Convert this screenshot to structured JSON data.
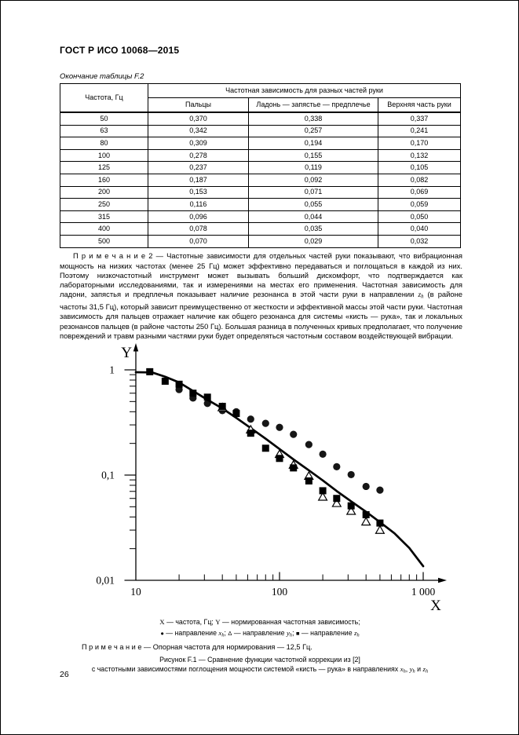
{
  "page": {
    "standard_code": "ГОСТ Р ИСО 10068—2015",
    "table_continuation": "Окончание таблицы F.2",
    "page_number": "26"
  },
  "table": {
    "col1_header": "Частота, Гц",
    "group_header": "Частотная зависимость для разных частей руки",
    "sub_headers": [
      "Пальцы",
      "Ладонь — запястье — предплечье",
      "Верхняя часть руки"
    ],
    "rows": [
      [
        "50",
        "0,370",
        "0,338",
        "0,337"
      ],
      [
        "63",
        "0,342",
        "0,257",
        "0,241"
      ],
      [
        "80",
        "0,309",
        "0,194",
        "0,170"
      ],
      [
        "100",
        "0,278",
        "0,155",
        "0,132"
      ],
      [
        "125",
        "0,237",
        "0,119",
        "0,105"
      ],
      [
        "160",
        "0,187",
        "0,092",
        "0,082"
      ],
      [
        "200",
        "0,153",
        "0,071",
        "0,069"
      ],
      [
        "250",
        "0,116",
        "0,055",
        "0,059"
      ],
      [
        "315",
        "0,096",
        "0,044",
        "0,050"
      ],
      [
        "400",
        "0,078",
        "0,035",
        "0,040"
      ],
      [
        "500",
        "0,070",
        "0,029",
        "0,032"
      ]
    ]
  },
  "note2": {
    "segments": [
      {
        "t": "П р и м е ч а н и е  2 — Частотные зависимости для отдельных частей руки показывают, что вибрационная мощность на низких частотах (менее 25 Гц) может эффективно передаваться и поглощаться в каждой из них. Поэтому низкочастотный инструмент может вызывать больший дискомфорт, что подтверждается как лабораторными исследованиями, так и измерениями на местах его применения. Частотная зависимость для ладони, запястья и предплечья показывает наличие резонанса в этой части руки в направлении "
      },
      {
        "t": "z",
        "s": "i"
      },
      {
        "t": "h",
        "s": "sub"
      },
      {
        "t": " (в районе частоты 31,5 Гц), который зависит преимущественно от жесткости и эффективной массы этой части руки. Частотная зависимость для пальцев отражает наличие как общего резонанса для системы «кисть — рука», так и локальных резонансов пальцев (в районе частоты 250 Гц). Большая разница в полученных кривых предполагает, что получение повреждений и травм разными частями руки будет определяться частотным составом воздействующей вибрации."
      }
    ]
  },
  "chart_data": {
    "type": "line",
    "title": "Рисунок F.1 — Сравнение функции частотной коррекции из [2] с частотными зависимостями поглощения мощности системой «кисть — рука» в направлениях xh, yh и zh",
    "normalization_reference": "Опорная частота для нормирования — 12,5 Гц",
    "x_axis": {
      "label": "X",
      "meaning": "частота, Гц",
      "scale": "log",
      "min": 10,
      "max": 1000,
      "ticks": [
        10,
        100,
        1000
      ],
      "tick_labels": [
        "10",
        "100",
        "1 000"
      ],
      "minor_ticks": [
        20,
        30,
        40,
        50,
        60,
        70,
        80,
        90,
        200,
        300,
        400,
        500,
        600,
        700,
        800,
        900
      ]
    },
    "y_axis": {
      "label": "Y",
      "meaning": "нормированная частотная зависимость",
      "scale": "log",
      "min": 0.01,
      "max": 1,
      "ticks": [
        1,
        0.1,
        0.01
      ],
      "tick_labels": [
        "1",
        "0,1",
        "0,01"
      ],
      "minor_ticks": [
        0.9,
        0.8,
        0.7,
        0.6,
        0.5,
        0.4,
        0.3,
        0.2,
        0.09,
        0.08,
        0.07,
        0.06,
        0.05,
        0.04,
        0.03,
        0.02
      ]
    },
    "series": [
      {
        "name": "функция частотной коррекции из [2]",
        "symbol": "line",
        "points": [
          [
            10,
            0.95
          ],
          [
            13,
            0.945
          ],
          [
            16,
            0.86
          ],
          [
            20,
            0.76
          ],
          [
            25,
            0.63
          ],
          [
            31.5,
            0.52
          ],
          [
            40,
            0.43
          ],
          [
            50,
            0.35
          ],
          [
            63,
            0.28
          ],
          [
            80,
            0.222
          ],
          [
            100,
            0.177
          ],
          [
            125,
            0.141
          ],
          [
            160,
            0.111
          ],
          [
            200,
            0.089
          ],
          [
            250,
            0.0705
          ],
          [
            315,
            0.0563
          ],
          [
            400,
            0.0448
          ],
          [
            500,
            0.0357
          ],
          [
            630,
            0.028
          ],
          [
            800,
            0.0203
          ],
          [
            1000,
            0.0136
          ]
        ]
      },
      {
        "name": "направление xh",
        "symbol": "filled-circle",
        "points": [
          [
            20,
            0.65
          ],
          [
            25,
            0.54
          ],
          [
            31.5,
            0.48
          ],
          [
            40,
            0.41
          ],
          [
            50,
            0.4
          ],
          [
            63,
            0.34
          ],
          [
            80,
            0.31
          ],
          [
            100,
            0.284
          ],
          [
            125,
            0.244
          ],
          [
            160,
            0.195
          ],
          [
            200,
            0.158
          ],
          [
            250,
            0.12
          ],
          [
            315,
            0.101
          ],
          [
            400,
            0.078
          ],
          [
            500,
            0.072
          ]
        ]
      },
      {
        "name": "направление yh",
        "symbol": "open-triangle",
        "points": [
          [
            40,
            0.44
          ],
          [
            63,
            0.27
          ],
          [
            100,
            0.158
          ],
          [
            125,
            0.125
          ],
          [
            160,
            0.098
          ],
          [
            200,
            0.062
          ],
          [
            250,
            0.054
          ],
          [
            315,
            0.0455
          ],
          [
            400,
            0.036
          ],
          [
            500,
            0.03
          ]
        ]
      },
      {
        "name": "направление zh",
        "symbol": "filled-square",
        "points": [
          [
            12.5,
            0.96
          ],
          [
            16,
            0.78
          ],
          [
            20,
            0.73
          ],
          [
            25,
            0.6
          ],
          [
            31.5,
            0.55
          ],
          [
            40,
            0.45
          ],
          [
            50,
            0.385
          ],
          [
            63,
            0.25
          ],
          [
            80,
            0.18
          ],
          [
            100,
            0.144
          ],
          [
            125,
            0.117
          ],
          [
            160,
            0.088
          ],
          [
            200,
            0.071
          ],
          [
            250,
            0.06
          ],
          [
            315,
            0.051
          ],
          [
            400,
            0.042
          ],
          [
            500,
            0.035
          ]
        ]
      }
    ]
  },
  "figure": {
    "legend_line1_segments": [
      {
        "t": "X",
        "s": "sr"
      },
      {
        "t": " — частота, Гц; "
      },
      {
        "t": "Y",
        "s": "sr"
      },
      {
        "t": " — нормированная частотная зависимость;"
      }
    ],
    "legend_line2_segments": [
      {
        "t": "●",
        "s": "sym"
      },
      {
        "t": " — направление "
      },
      {
        "t": "x",
        "s": "i"
      },
      {
        "t": "h",
        "s": "sub"
      },
      {
        "t": "; "
      },
      {
        "t": "Δ",
        "s": "sym"
      },
      {
        "t": " — направление "
      },
      {
        "t": "y",
        "s": "i"
      },
      {
        "t": "h",
        "s": "sub"
      },
      {
        "t": "; "
      },
      {
        "t": "■",
        "s": "sym"
      },
      {
        "t": " — направление "
      },
      {
        "t": "z",
        "s": "i"
      },
      {
        "t": "h",
        "s": "sub"
      }
    ],
    "note_line": "П р и м е ч а н и е — Опорная частота для нормирования — 12,5 Гц.",
    "caption_line1": "Рисунок F.1 — Сравнение функции частотной коррекции из [2]",
    "caption_line2_segments": [
      {
        "t": "с частотными зависимостями поглощения мощности системой «кисть — рука» в направлениях "
      },
      {
        "t": "x",
        "s": "i"
      },
      {
        "t": "h",
        "s": "sub"
      },
      {
        "t": ", "
      },
      {
        "t": "y",
        "s": "i"
      },
      {
        "t": "h",
        "s": "sub"
      },
      {
        "t": " и "
      },
      {
        "t": "z",
        "s": "i"
      },
      {
        "t": "h",
        "s": "sub"
      }
    ]
  },
  "colors": {
    "ink": "#000000",
    "paper": "#ffffff"
  }
}
